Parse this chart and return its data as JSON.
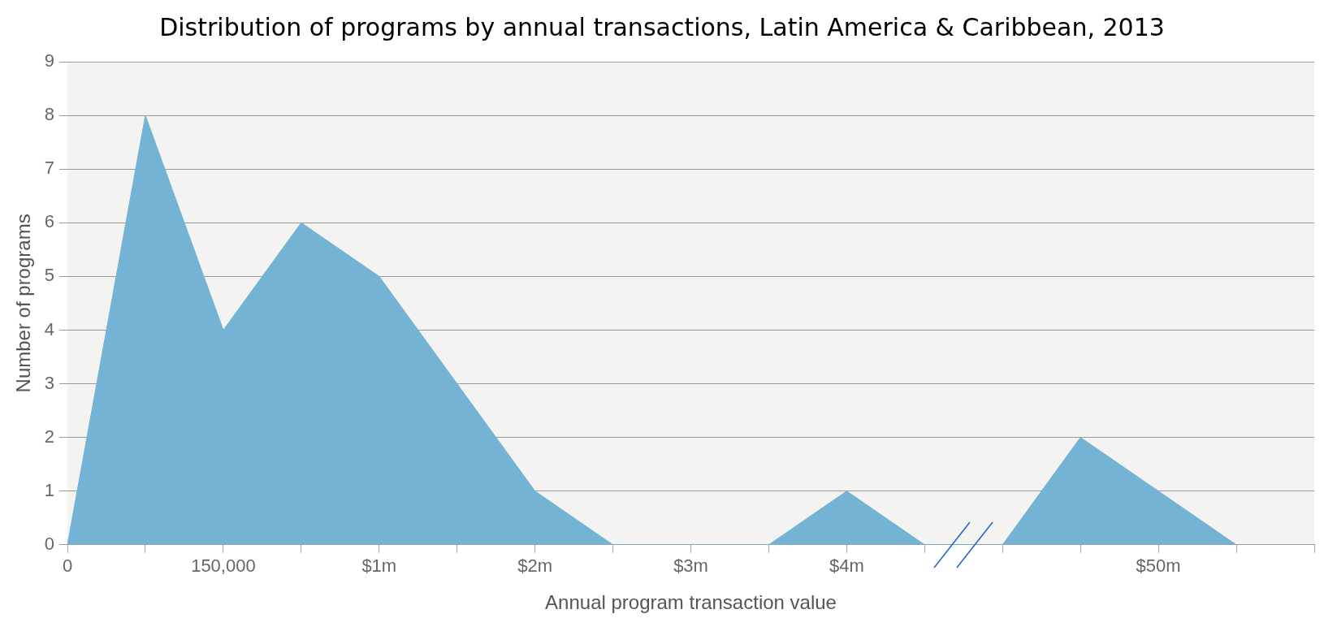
{
  "chart_data": {
    "type": "area",
    "title": "Distribution of programs by annual transactions, Latin America & Caribbean, 2013",
    "xlabel": "Annual program transaction value",
    "ylabel": "Number of programs",
    "categories": [
      "0",
      null,
      "150,000",
      null,
      "$1m",
      null,
      "$2m",
      null,
      "$3m",
      null,
      "$4m",
      null,
      null,
      null,
      "$50m",
      null,
      null
    ],
    "values": [
      0,
      8,
      4,
      6,
      5,
      3,
      1,
      0,
      0,
      0,
      1,
      0,
      0,
      2,
      1,
      0,
      null
    ],
    "color": "#74b3d3",
    "ylim": [
      0,
      9
    ],
    "yticks": [
      0,
      1,
      2,
      3,
      4,
      5,
      6,
      7,
      8,
      9
    ],
    "grid": "y"
  }
}
